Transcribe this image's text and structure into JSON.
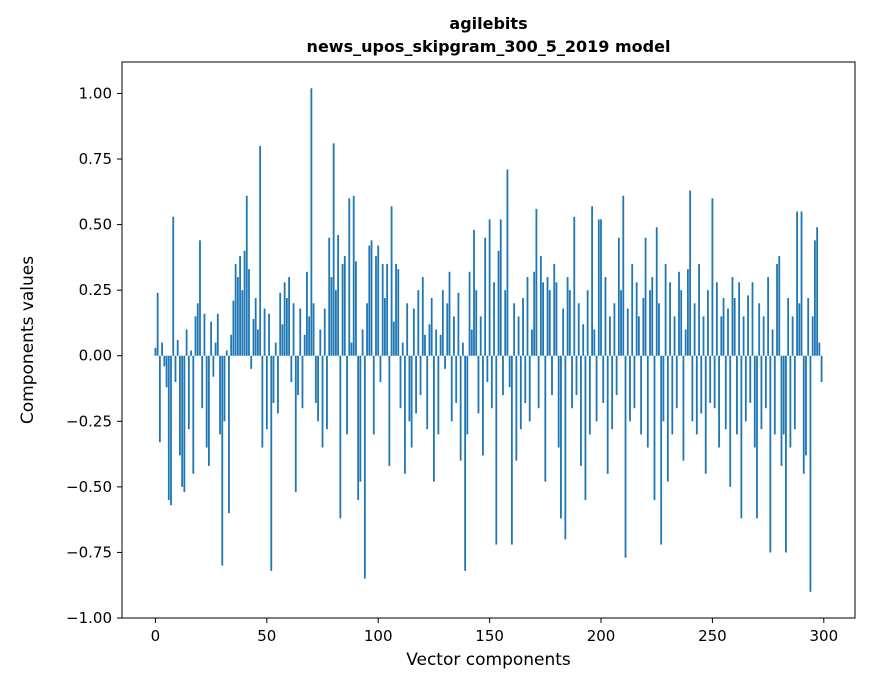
{
  "figure": {
    "title_line1": "agilebits",
    "title_line2": "news_upos_skipgram_300_5_2019 model",
    "xlabel": "Vector components",
    "ylabel": "Components values"
  },
  "chart_data": {
    "type": "bar",
    "title": "agilebits\nnews_upos_skipgram_300_5_2019 model",
    "xlabel": "Vector components",
    "ylabel": "Components values",
    "bar_color": "#1f77b4",
    "grid": false,
    "legend": false,
    "x_description": "vector component indices 0 through 299, step 1",
    "xlim": [
      -15,
      314
    ],
    "ylim": [
      -1.0,
      1.12
    ],
    "xticks": [
      0,
      50,
      100,
      150,
      200,
      250,
      300
    ],
    "yticks": [
      -1.0,
      -0.75,
      -0.5,
      -0.25,
      0.0,
      0.25,
      0.5,
      0.75,
      1.0
    ],
    "ytick_labels": [
      "−1.00",
      "−0.75",
      "−0.50",
      "−0.25",
      "0.00",
      "0.25",
      "0.50",
      "0.75",
      "1.00"
    ],
    "values": [
      0.03,
      0.24,
      -0.33,
      0.05,
      -0.04,
      -0.12,
      -0.55,
      -0.57,
      0.53,
      -0.1,
      0.06,
      -0.38,
      -0.5,
      -0.52,
      0.1,
      -0.28,
      0.02,
      -0.45,
      0.15,
      0.2,
      0.44,
      -0.2,
      0.16,
      -0.35,
      -0.42,
      0.13,
      -0.08,
      0.05,
      0.16,
      -0.3,
      -0.8,
      -0.25,
      0.02,
      -0.6,
      0.08,
      0.21,
      0.35,
      0.3,
      0.38,
      0.25,
      0.4,
      0.61,
      0.33,
      -0.05,
      0.14,
      0.22,
      0.1,
      0.8,
      -0.35,
      0.18,
      -0.28,
      0.16,
      -0.82,
      -0.18,
      0.05,
      -0.22,
      0.24,
      0.12,
      0.28,
      0.22,
      0.3,
      -0.1,
      0.2,
      -0.52,
      -0.15,
      0.18,
      -0.2,
      0.08,
      0.32,
      0.15,
      1.02,
      0.2,
      -0.18,
      -0.25,
      0.1,
      -0.35,
      0.18,
      -0.28,
      0.45,
      0.3,
      0.81,
      0.25,
      0.46,
      -0.62,
      0.35,
      0.38,
      -0.3,
      0.6,
      0.05,
      0.61,
      0.36,
      -0.55,
      -0.48,
      0.1,
      -0.85,
      0.2,
      0.42,
      0.44,
      -0.3,
      0.38,
      0.42,
      -0.1,
      0.35,
      0.22,
      0.35,
      -0.42,
      0.57,
      0.13,
      0.35,
      0.33,
      -0.2,
      0.05,
      -0.45,
      0.2,
      -0.25,
      -0.35,
      0.18,
      -0.22,
      0.25,
      -0.15,
      0.3,
      0.08,
      -0.28,
      0.12,
      0.22,
      -0.48,
      0.1,
      -0.3,
      0.08,
      0.25,
      -0.05,
      0.2,
      0.32,
      -0.25,
      0.15,
      -0.18,
      0.24,
      -0.4,
      0.05,
      -0.82,
      -0.3,
      0.32,
      0.1,
      0.48,
      0.25,
      -0.22,
      0.15,
      -0.38,
      0.45,
      -0.1,
      0.52,
      -0.2,
      0.28,
      -0.72,
      0.4,
      0.52,
      -0.15,
      0.25,
      0.71,
      -0.12,
      -0.72,
      0.2,
      -0.4,
      0.15,
      -0.28,
      0.22,
      -0.18,
      0.3,
      -0.25,
      0.1,
      0.32,
      0.56,
      -0.2,
      0.38,
      0.28,
      -0.48,
      0.3,
      0.25,
      -0.15,
      0.35,
      0.28,
      -0.35,
      -0.62,
      0.18,
      -0.7,
      0.3,
      0.25,
      -0.2,
      0.53,
      -0.15,
      0.2,
      -0.42,
      0.12,
      -0.55,
      0.25,
      -0.3,
      0.57,
      0.1,
      -0.25,
      0.52,
      0.52,
      -0.18,
      0.3,
      -0.45,
      0.15,
      -0.28,
      0.2,
      -0.15,
      0.45,
      0.25,
      0.61,
      -0.77,
      0.18,
      -0.25,
      0.35,
      -0.2,
      0.28,
      0.15,
      -0.3,
      0.22,
      0.45,
      -0.35,
      0.25,
      0.3,
      -0.55,
      0.49,
      0.2,
      -0.72,
      -0.25,
      0.35,
      -0.48,
      0.28,
      -0.3,
      0.15,
      -0.2,
      0.32,
      0.25,
      -0.4,
      0.1,
      0.33,
      0.63,
      -0.25,
      0.2,
      -0.3,
      0.35,
      -0.22,
      0.15,
      -0.45,
      0.25,
      -0.18,
      0.6,
      -0.2,
      0.28,
      -0.35,
      0.15,
      0.22,
      -0.28,
      0.18,
      -0.5,
      0.3,
      0.22,
      -0.3,
      0.28,
      -0.62,
      0.15,
      -0.25,
      0.23,
      -0.18,
      0.28,
      -0.35,
      -0.62,
      0.2,
      -0.28,
      0.15,
      -0.2,
      0.3,
      -0.75,
      0.1,
      -0.3,
      0.35,
      0.38,
      -0.42,
      -0.3,
      -0.75,
      0.22,
      -0.35,
      0.15,
      -0.28,
      0.55,
      0.2,
      0.55,
      -0.45,
      -0.38,
      0.22,
      -0.9,
      0.15,
      0.44,
      0.49,
      0.05,
      -0.1
    ]
  }
}
